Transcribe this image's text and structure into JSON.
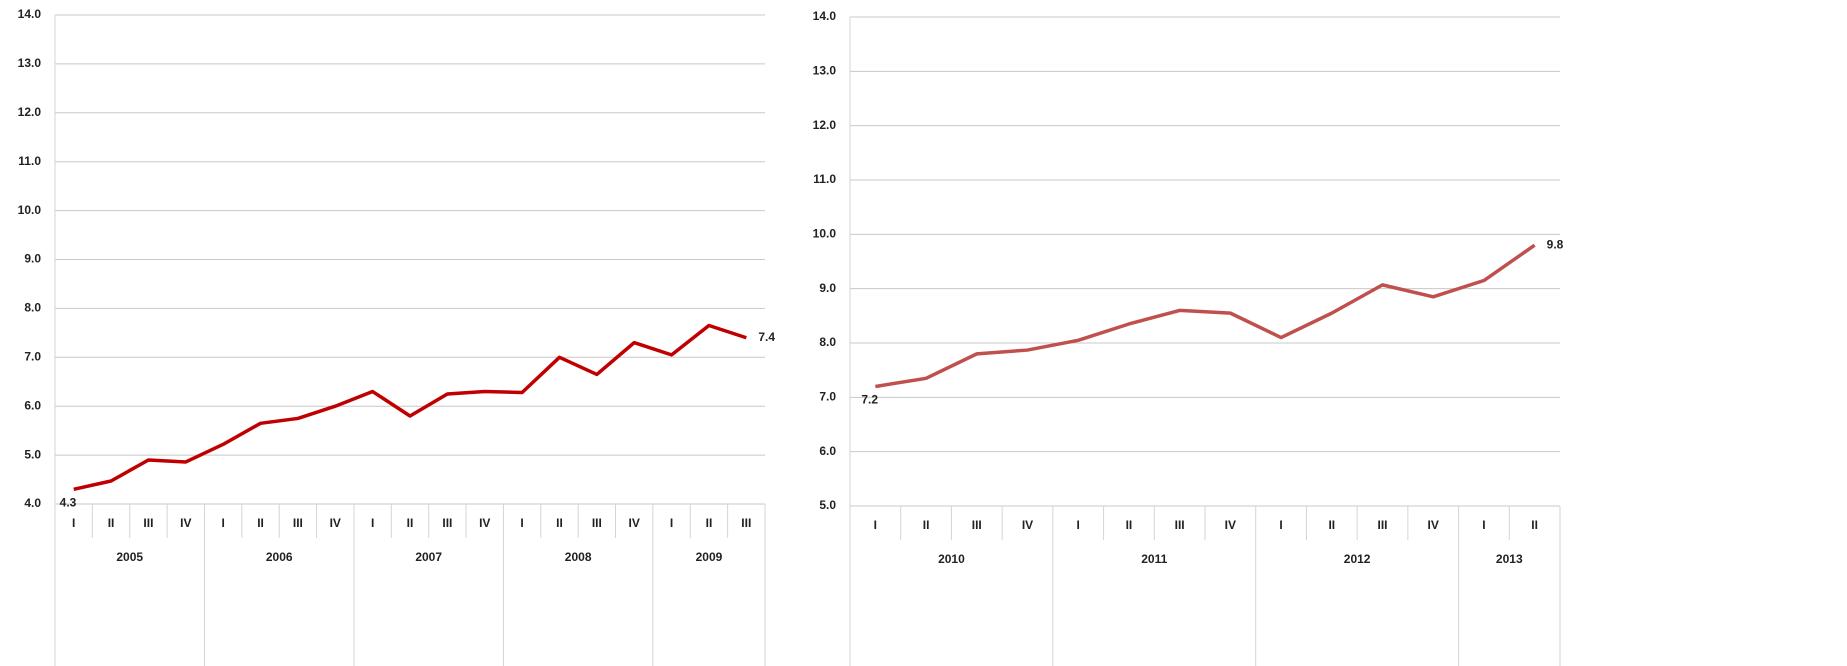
{
  "chart_data": [
    {
      "type": "line",
      "groups": [
        {
          "label": "2005",
          "categories": [
            "I",
            "II",
            "III",
            "IV"
          ]
        },
        {
          "label": "2006",
          "categories": [
            "I",
            "II",
            "III",
            "IV"
          ]
        },
        {
          "label": "2007",
          "categories": [
            "I",
            "II",
            "III",
            "IV"
          ]
        },
        {
          "label": "2008",
          "categories": [
            "I",
            "II",
            "III",
            "IV"
          ]
        },
        {
          "label": "2009",
          "categories": [
            "I",
            "II",
            "III"
          ]
        }
      ],
      "series": [
        {
          "color": "#c00000",
          "values": [
            4.3,
            4.47,
            4.9,
            4.86,
            5.22,
            5.65,
            5.75,
            6.0,
            6.3,
            5.8,
            6.25,
            6.3,
            6.28,
            7.0,
            6.65,
            7.3,
            7.05,
            7.65,
            7.4
          ],
          "value_labels": [
            "4.3",
            null,
            null,
            null,
            null,
            null,
            null,
            null,
            null,
            null,
            null,
            null,
            null,
            null,
            null,
            null,
            null,
            null,
            "7.4"
          ]
        }
      ],
      "ylim": [
        4,
        14
      ],
      "yticks": [
        {
          "value": 4,
          "label": "4.0"
        },
        {
          "value": 5,
          "label": "5.0"
        },
        {
          "value": 6,
          "label": "6.0"
        },
        {
          "value": 7,
          "label": "7.0"
        },
        {
          "value": 8,
          "label": "8.0"
        },
        {
          "value": 9,
          "label": "9.0"
        },
        {
          "value": 10,
          "label": "10.0"
        },
        {
          "value": 11,
          "label": "11.0"
        },
        {
          "value": 12,
          "label": "12.0"
        },
        {
          "value": 13,
          "label": "13.0"
        },
        {
          "value": 14,
          "label": "14.0"
        }
      ],
      "grid": true
    },
    {
      "type": "line",
      "groups": [
        {
          "label": "2010",
          "categories": [
            "I",
            "II",
            "III",
            "IV"
          ]
        },
        {
          "label": "2011",
          "categories": [
            "I",
            "II",
            "III",
            "IV"
          ]
        },
        {
          "label": "2012",
          "categories": [
            "I",
            "II",
            "III",
            "IV"
          ]
        },
        {
          "label": "2013",
          "categories": [
            "I",
            "II"
          ]
        }
      ],
      "series": [
        {
          "color": "#c0504d",
          "values": [
            7.2,
            7.35,
            7.8,
            7.87,
            8.05,
            8.35,
            8.6,
            8.55,
            8.1,
            8.55,
            9.07,
            8.85,
            9.15,
            9.8
          ],
          "value_labels": [
            "7.2",
            null,
            null,
            null,
            null,
            null,
            null,
            null,
            null,
            null,
            null,
            null,
            null,
            "9.8"
          ]
        }
      ],
      "ylim": [
        5,
        14
      ],
      "yticks": [
        {
          "value": 5,
          "label": "5.0"
        },
        {
          "value": 6,
          "label": "6.0"
        },
        {
          "value": 7,
          "label": "7.0"
        },
        {
          "value": 8,
          "label": "8.0"
        },
        {
          "value": 9,
          "label": "9.0"
        },
        {
          "value": 10,
          "label": "10.0"
        },
        {
          "value": 11,
          "label": "11.0"
        },
        {
          "value": 12,
          "label": "12.0"
        },
        {
          "value": 13,
          "label": "13.0"
        },
        {
          "value": 14,
          "label": "14.0"
        }
      ],
      "grid": true
    }
  ]
}
